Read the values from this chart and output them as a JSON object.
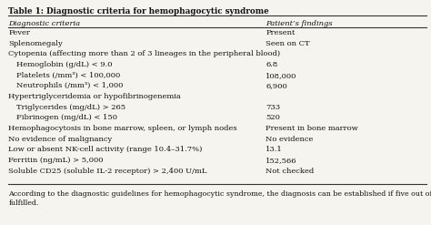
{
  "title": "Table 1: Diagnostic criteria for hemophagocytic syndrome",
  "col1_header": "Diagnostic criteria",
  "col2_header": "Patient’s findings",
  "rows": [
    [
      "Fever",
      "Present"
    ],
    [
      "Splenomegaly",
      "Seen on CT"
    ],
    [
      "Cytopenia (affecting more than 2 of 3 lineages in the peripheral blood)",
      ""
    ],
    [
      "Hemoglobin (g/dL) < 9.0",
      "6.8"
    ],
    [
      "Platelets (/mm³) < 100,000",
      "108,000"
    ],
    [
      "Neutrophils (/mm³) < 1,000",
      "6,900"
    ],
    [
      "Hypertriglyceridemia or hypofibrinogenemia",
      ""
    ],
    [
      "Triglycerides (mg/dL) > 265",
      "733"
    ],
    [
      "Fibrinogen (mg/dL) < 150",
      "520"
    ],
    [
      "Hemophagocytosis in bone marrow, spleen, or lymph nodes",
      "Present in bone marrow"
    ],
    [
      "No evidence of malignancy",
      "No evidence"
    ],
    [
      "Low or absent NK-cell activity (range 10.4–31.7%)",
      "13.1"
    ],
    [
      "Ferritin (ng/mL) > 5,000",
      "152,566"
    ],
    [
      "Soluble CD25 (soluble IL-2 receptor) > 2,400 U/mL",
      "Not checked"
    ]
  ],
  "footer": "According to the diagnostic guidelines for hemophagocytic syndrome, the diagnosis can be established if five out of eight criteria\nfulfilled.",
  "bg_color": "#f5f4ee",
  "header_line_color": "#333333",
  "text_color": "#111111",
  "font_size": 6.0,
  "title_font_size": 6.3,
  "footer_font_size": 5.7,
  "col_split": 0.615,
  "indent_rows": [
    3,
    4,
    5,
    7,
    8
  ]
}
